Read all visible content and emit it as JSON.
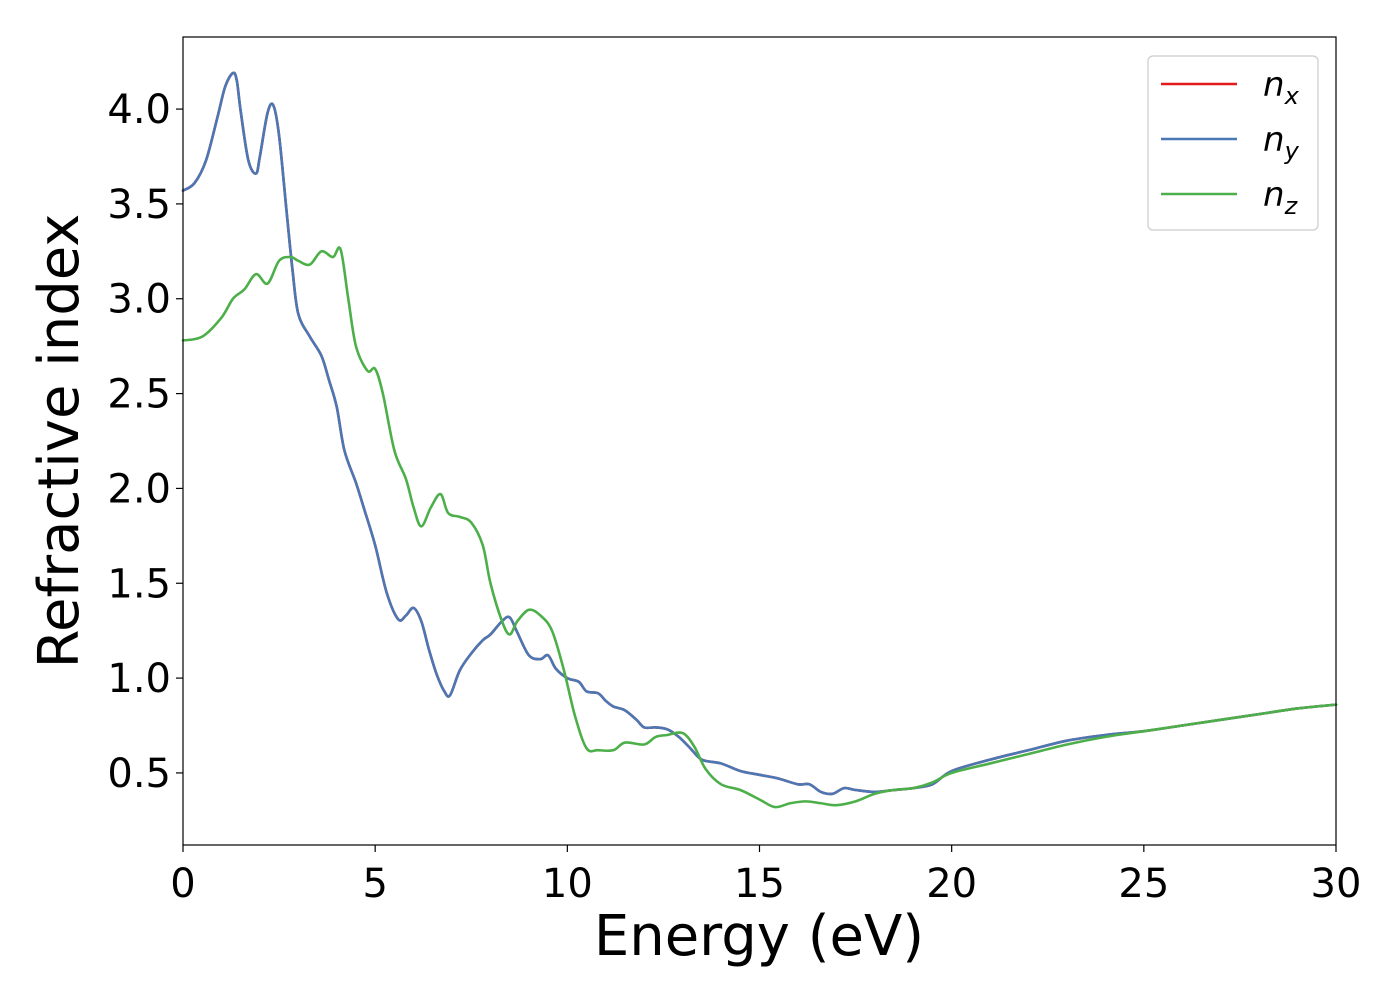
{
  "chart_data": {
    "type": "line",
    "xlabel": "Energy (eV)",
    "ylabel": "Refractive index",
    "xlim": [
      0,
      30
    ],
    "ylim": [
      0.12,
      4.38
    ],
    "xticks": [
      "0",
      "5",
      "10",
      "15",
      "20",
      "25",
      "30"
    ],
    "yticks": [
      "0.5",
      "1.0",
      "1.5",
      "2.0",
      "2.5",
      "3.0",
      "3.5",
      "4.0"
    ],
    "grid": false,
    "legend_position": "top-right",
    "series": [
      {
        "name": "n",
        "subscript": "x",
        "color": "#e41a1c",
        "x": [
          0,
          0.3,
          0.6,
          0.9,
          1.1,
          1.3,
          1.4,
          1.5,
          1.7,
          1.9,
          2.0,
          2.2,
          2.35,
          2.5,
          2.7,
          2.85,
          3.0,
          3.3,
          3.6,
          3.8,
          4.0,
          4.2,
          4.5,
          4.7,
          5.0,
          5.3,
          5.6,
          5.8,
          6.0,
          6.2,
          6.4,
          6.6,
          6.8,
          6.95,
          7.2,
          7.5,
          7.8,
          8.0,
          8.3,
          8.5,
          8.7,
          9.0,
          9.3,
          9.5,
          9.7,
          10.0,
          10.3,
          10.5,
          10.8,
          11.0,
          11.2,
          11.5,
          11.8,
          12.0,
          12.3,
          12.6,
          12.9,
          13.2,
          13.5,
          14.0,
          14.5,
          15.0,
          15.5,
          16.0,
          16.3,
          16.6,
          16.9,
          17.2,
          17.5,
          18.0,
          18.5,
          19.0,
          19.5,
          20.0,
          21.0,
          22.0,
          23.0,
          24.0,
          25.0,
          26.0,
          27.0,
          28.0,
          29.0,
          30.0
        ],
        "y": [
          3.57,
          3.61,
          3.73,
          3.96,
          4.12,
          4.19,
          4.15,
          3.99,
          3.73,
          3.66,
          3.75,
          3.98,
          4.02,
          3.86,
          3.45,
          3.15,
          2.92,
          2.8,
          2.7,
          2.57,
          2.43,
          2.2,
          2.03,
          1.9,
          1.7,
          1.45,
          1.31,
          1.33,
          1.37,
          1.3,
          1.15,
          1.02,
          0.93,
          0.91,
          1.04,
          1.13,
          1.2,
          1.23,
          1.3,
          1.32,
          1.24,
          1.12,
          1.1,
          1.12,
          1.05,
          1.0,
          0.98,
          0.93,
          0.92,
          0.88,
          0.85,
          0.83,
          0.78,
          0.74,
          0.74,
          0.73,
          0.69,
          0.63,
          0.57,
          0.55,
          0.51,
          0.49,
          0.47,
          0.44,
          0.44,
          0.4,
          0.39,
          0.42,
          0.41,
          0.4,
          0.41,
          0.42,
          0.44,
          0.51,
          0.57,
          0.62,
          0.67,
          0.7,
          0.72,
          0.75,
          0.78,
          0.81,
          0.84,
          0.86
        ]
      },
      {
        "name": "n",
        "subscript": "y",
        "color": "#4a78b4",
        "x": [
          0,
          0.3,
          0.6,
          0.9,
          1.1,
          1.3,
          1.4,
          1.5,
          1.7,
          1.9,
          2.0,
          2.2,
          2.35,
          2.5,
          2.7,
          2.85,
          3.0,
          3.3,
          3.6,
          3.8,
          4.0,
          4.2,
          4.5,
          4.7,
          5.0,
          5.3,
          5.6,
          5.8,
          6.0,
          6.2,
          6.4,
          6.6,
          6.8,
          6.95,
          7.2,
          7.5,
          7.8,
          8.0,
          8.3,
          8.5,
          8.7,
          9.0,
          9.3,
          9.5,
          9.7,
          10.0,
          10.3,
          10.5,
          10.8,
          11.0,
          11.2,
          11.5,
          11.8,
          12.0,
          12.3,
          12.6,
          12.9,
          13.2,
          13.5,
          14.0,
          14.5,
          15.0,
          15.5,
          16.0,
          16.3,
          16.6,
          16.9,
          17.2,
          17.5,
          18.0,
          18.5,
          19.0,
          19.5,
          20.0,
          21.0,
          22.0,
          23.0,
          24.0,
          25.0,
          26.0,
          27.0,
          28.0,
          29.0,
          30.0
        ],
        "y": [
          3.57,
          3.61,
          3.73,
          3.96,
          4.12,
          4.19,
          4.15,
          3.99,
          3.73,
          3.66,
          3.75,
          3.98,
          4.02,
          3.86,
          3.45,
          3.15,
          2.92,
          2.8,
          2.7,
          2.57,
          2.43,
          2.2,
          2.03,
          1.9,
          1.7,
          1.45,
          1.31,
          1.33,
          1.37,
          1.3,
          1.15,
          1.02,
          0.93,
          0.91,
          1.04,
          1.13,
          1.2,
          1.23,
          1.3,
          1.32,
          1.24,
          1.12,
          1.1,
          1.12,
          1.05,
          1.0,
          0.98,
          0.93,
          0.92,
          0.88,
          0.85,
          0.83,
          0.78,
          0.74,
          0.74,
          0.73,
          0.69,
          0.63,
          0.57,
          0.55,
          0.51,
          0.49,
          0.47,
          0.44,
          0.44,
          0.4,
          0.39,
          0.42,
          0.41,
          0.4,
          0.41,
          0.42,
          0.44,
          0.51,
          0.57,
          0.62,
          0.67,
          0.7,
          0.72,
          0.75,
          0.78,
          0.81,
          0.84,
          0.86
        ]
      },
      {
        "name": "n",
        "subscript": "z",
        "color": "#4daf4a",
        "x": [
          0,
          0.5,
          1.0,
          1.3,
          1.6,
          1.9,
          2.2,
          2.5,
          2.8,
          3.0,
          3.3,
          3.6,
          3.9,
          4.1,
          4.3,
          4.5,
          4.8,
          5.0,
          5.2,
          5.5,
          5.8,
          6.0,
          6.2,
          6.45,
          6.7,
          6.9,
          7.2,
          7.5,
          7.8,
          8.0,
          8.3,
          8.5,
          8.7,
          9.0,
          9.3,
          9.6,
          9.9,
          10.2,
          10.5,
          10.8,
          11.2,
          11.5,
          12.0,
          12.3,
          12.6,
          13.0,
          13.3,
          13.6,
          14.0,
          14.5,
          15.0,
          15.4,
          15.8,
          16.2,
          16.6,
          17.0,
          17.5,
          18.0,
          18.5,
          19.0,
          19.5,
          20.0,
          21.0,
          22.0,
          23.0,
          24.0,
          25.0,
          26.0,
          27.0,
          28.0,
          29.0,
          30.0
        ],
        "y": [
          2.78,
          2.8,
          2.9,
          3.0,
          3.05,
          3.13,
          3.08,
          3.2,
          3.22,
          3.2,
          3.18,
          3.25,
          3.22,
          3.26,
          3.0,
          2.75,
          2.62,
          2.63,
          2.5,
          2.2,
          2.05,
          1.9,
          1.8,
          1.9,
          1.97,
          1.87,
          1.85,
          1.82,
          1.7,
          1.5,
          1.3,
          1.23,
          1.3,
          1.36,
          1.33,
          1.25,
          1.05,
          0.8,
          0.63,
          0.62,
          0.62,
          0.66,
          0.65,
          0.69,
          0.7,
          0.71,
          0.64,
          0.52,
          0.44,
          0.41,
          0.36,
          0.32,
          0.34,
          0.35,
          0.34,
          0.33,
          0.35,
          0.39,
          0.41,
          0.42,
          0.45,
          0.5,
          0.55,
          0.6,
          0.65,
          0.69,
          0.72,
          0.75,
          0.78,
          0.81,
          0.84,
          0.86
        ]
      }
    ]
  }
}
